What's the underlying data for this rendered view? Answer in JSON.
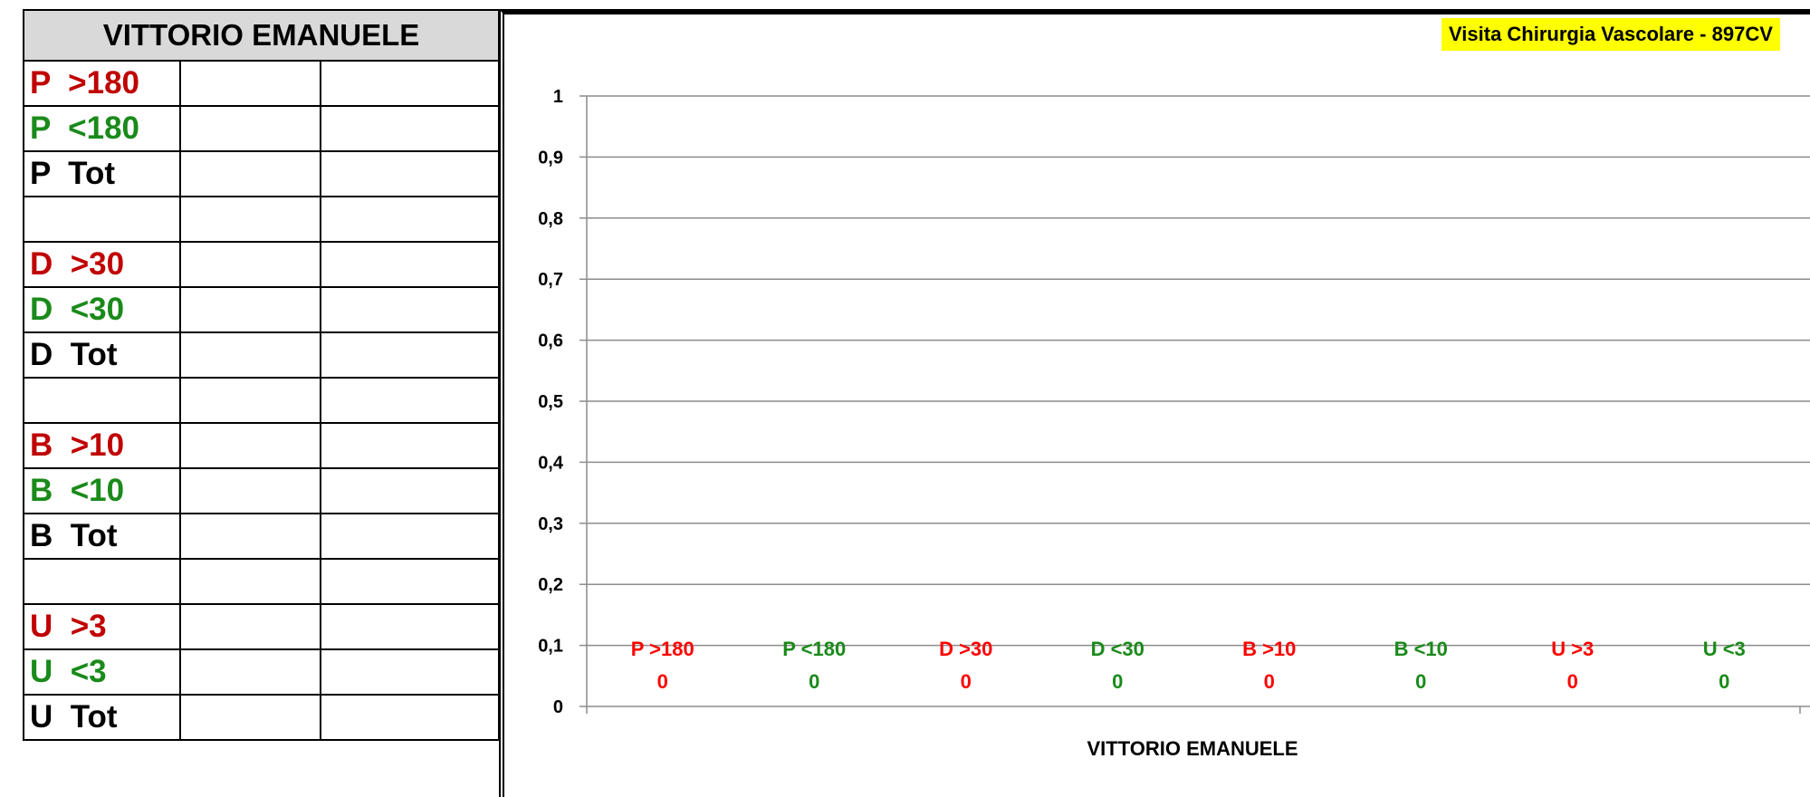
{
  "table": {
    "title": "VITTORIO EMANUELE",
    "rows": [
      {
        "label": "P  >180",
        "tone": "red"
      },
      {
        "label": "P  <180",
        "tone": "green"
      },
      {
        "label": "P  Tot",
        "tone": "black"
      },
      {
        "label": "",
        "tone": "black"
      },
      {
        "label": "D  >30",
        "tone": "red"
      },
      {
        "label": "D  <30",
        "tone": "green"
      },
      {
        "label": "D  Tot",
        "tone": "black"
      },
      {
        "label": "",
        "tone": "black"
      },
      {
        "label": "B  >10",
        "tone": "red"
      },
      {
        "label": "B  <10",
        "tone": "green"
      },
      {
        "label": "B  Tot",
        "tone": "black"
      },
      {
        "label": "",
        "tone": "black"
      },
      {
        "label": "U  >3",
        "tone": "red"
      },
      {
        "label": "U  <3",
        "tone": "green"
      },
      {
        "label": "U  Tot",
        "tone": "black"
      }
    ]
  },
  "colors": {
    "red": "#c00000",
    "green": "#1a8a1a",
    "black": "#000000",
    "highlight": "#ffff00",
    "header_bg": "#d9d9d9"
  },
  "chart_data": {
    "type": "bar",
    "title": "",
    "subtitle": "Visita Chirurgia Vascolare - 897CV",
    "xlabel": "VITTORIO EMANUELE",
    "ylabel": "",
    "ylim": [
      0,
      1
    ],
    "yticks": [
      "0",
      "0,1",
      "0,2",
      "0,3",
      "0,4",
      "0,5",
      "0,6",
      "0,7",
      "0,8",
      "0,9",
      "1"
    ],
    "grid": true,
    "series": [
      {
        "label": "P >180",
        "value": 0,
        "color": "#ff0000"
      },
      {
        "label": "P <180",
        "value": 0,
        "color": "#1a8a1a"
      },
      {
        "label": "D >30",
        "value": 0,
        "color": "#ff0000"
      },
      {
        "label": "D <30",
        "value": 0,
        "color": "#1a8a1a"
      },
      {
        "label": "B >10",
        "value": 0,
        "color": "#ff0000"
      },
      {
        "label": "B <10",
        "value": 0,
        "color": "#1a8a1a"
      },
      {
        "label": "U >3",
        "value": 0,
        "color": "#ff0000"
      },
      {
        "label": "U <3",
        "value": 0,
        "color": "#1a8a1a"
      }
    ]
  }
}
